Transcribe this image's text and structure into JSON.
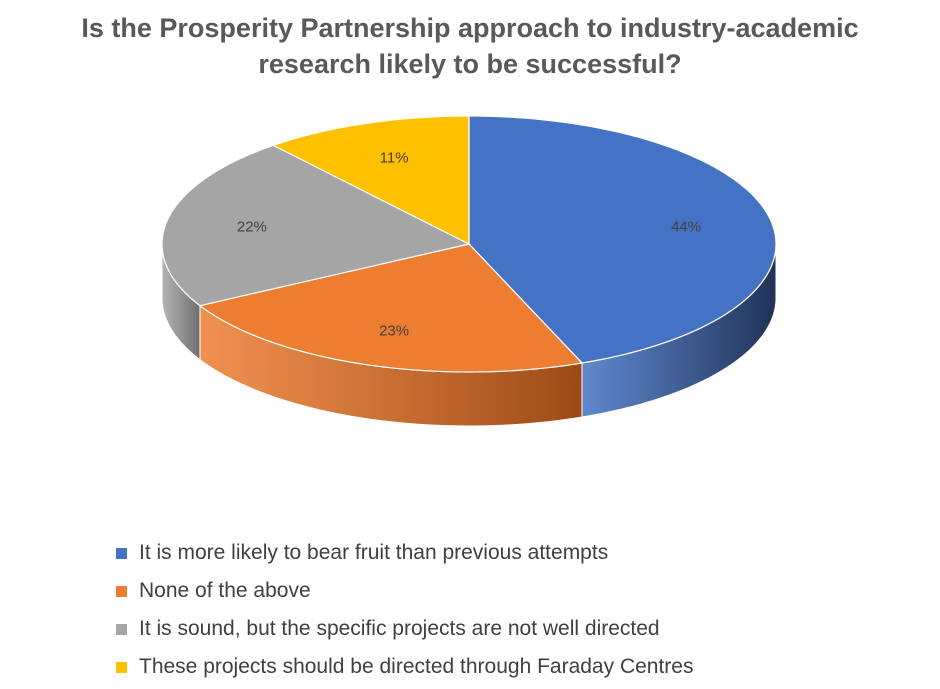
{
  "chart_data": {
    "type": "pie",
    "title": "Is the Prosperity Partnership approach to industry-academic research likely to be successful?",
    "slices": [
      {
        "label": "It is more likely to bear fruit than previous attempts",
        "value": 44,
        "value_label": "44%",
        "color": "#4472C4",
        "side_color": "#1F3255"
      },
      {
        "label": "None of the above",
        "value": 23,
        "value_label": "23%",
        "color": "#ED7D31",
        "side_color": "#9C4A16"
      },
      {
        "label": "It is sound, but the specific projects are not well directed",
        "value": 22,
        "value_label": "22%",
        "color": "#A5A5A5",
        "side_color": "#6E6E6E"
      },
      {
        "label": "These projects should be directed through Faraday Centres",
        "value": 11,
        "value_label": "11%",
        "color": "#FFC000",
        "side_color": "#B38600"
      }
    ],
    "legend_position": "bottom",
    "style": "3d"
  }
}
